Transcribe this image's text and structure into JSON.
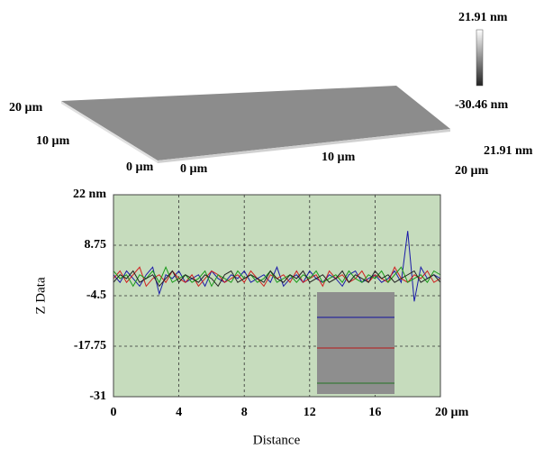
{
  "surface_plot": {
    "y_axis_labels": [
      "20 µm",
      "10 µm",
      "0 µm"
    ],
    "x_axis_labels": [
      "0 µm",
      "10 µm",
      "20 µm"
    ],
    "z_label": "21.91 nm",
    "colorbar": {
      "max_label": "21.91 nm",
      "min_label": "-30.46 nm"
    }
  },
  "chart_data": {
    "type": "line",
    "xlabel": "Distance",
    "ylabel": "Z Data",
    "x": [
      0,
      0.4,
      0.8,
      1.2,
      1.6,
      2,
      2.4,
      2.8,
      3.2,
      3.6,
      4,
      4.4,
      4.8,
      5.2,
      5.6,
      6,
      6.4,
      6.8,
      7.2,
      7.6,
      8,
      8.4,
      8.8,
      9.2,
      9.6,
      10,
      10.4,
      10.8,
      11.2,
      11.6,
      12,
      12.4,
      12.8,
      13.2,
      13.6,
      14,
      14.4,
      14.8,
      15.2,
      15.6,
      16,
      16.4,
      16.8,
      17.2,
      17.6,
      18,
      18.4,
      18.8,
      19.2,
      19.6,
      20
    ],
    "series": [
      {
        "color": "#1a1aa8",
        "values": [
          1,
          -1,
          2,
          0,
          -2,
          1,
          3,
          -4,
          1,
          0,
          2,
          -1,
          0,
          1,
          -2,
          2,
          0,
          -1,
          1,
          0,
          2,
          -1,
          0,
          1,
          -1,
          3,
          -2,
          0,
          1,
          -1,
          2,
          0,
          -1,
          1,
          0,
          -2,
          1,
          2,
          -1,
          0,
          1,
          -1,
          0,
          2,
          -1,
          12.5,
          -6,
          3,
          0,
          1,
          0
        ]
      },
      {
        "color": "#d02020",
        "values": [
          0,
          2,
          -1,
          1,
          3,
          -2,
          0,
          1,
          -1,
          2,
          0,
          -1,
          1,
          -2,
          0,
          2,
          1,
          -1,
          0,
          1,
          -1,
          2,
          0,
          -2,
          1,
          0,
          1,
          -1,
          2,
          -1,
          0,
          1,
          -2,
          2,
          0,
          1,
          -1,
          0,
          2,
          -1,
          1,
          0,
          -1,
          3,
          0,
          -1,
          1,
          0,
          2,
          -1,
          0
        ]
      },
      {
        "color": "#1a9a1a",
        "values": [
          2,
          0,
          1,
          -2,
          1,
          0,
          2,
          -1,
          3,
          -1,
          0,
          1,
          -1,
          0,
          2,
          -2,
          1,
          0,
          -1,
          2,
          0,
          1,
          -1,
          0,
          2,
          -1,
          0,
          1,
          -1,
          1,
          0,
          2,
          -1,
          0,
          1,
          -1,
          2,
          0,
          -1,
          1,
          0,
          2,
          -1,
          1,
          3,
          -1,
          0,
          1,
          -1,
          2,
          1
        ]
      },
      {
        "color": "#222222",
        "values": [
          -1,
          1,
          0,
          2,
          -1,
          0,
          1,
          -2,
          0,
          2,
          -1,
          1,
          0,
          -1,
          1,
          0,
          -2,
          1,
          2,
          -1,
          0,
          1,
          0,
          -1,
          2,
          0,
          -1,
          1,
          0,
          2,
          -1,
          0,
          1,
          -1,
          0,
          2,
          -1,
          1,
          0,
          -1,
          2,
          0,
          1,
          -1,
          0,
          1,
          2,
          -1,
          0,
          1,
          -1
        ]
      }
    ],
    "xlim": [
      0,
      20
    ],
    "ylim": [
      -31,
      22
    ],
    "xticks": [
      0,
      4,
      8,
      12,
      16,
      {
        "value": 20,
        "label": "20 µm"
      }
    ],
    "yticks": [
      {
        "value": 22,
        "label": "22 nm"
      },
      8.75,
      -4.5,
      -17.75,
      -31
    ],
    "grid": true,
    "background": "#c6dcbd"
  }
}
